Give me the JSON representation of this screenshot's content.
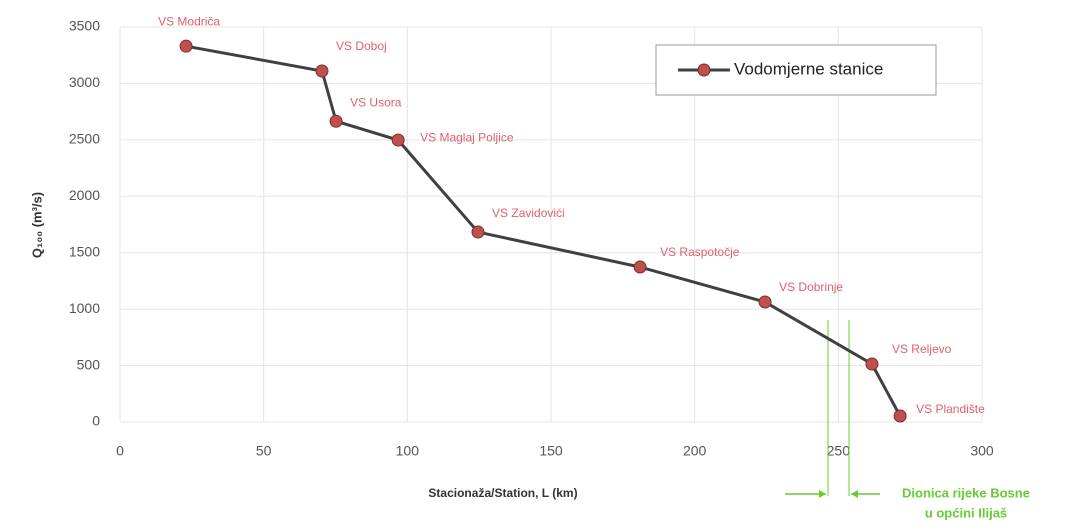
{
  "chart_data": {
    "type": "line",
    "y_label": "Q₁₀₀ (m³/s)",
    "x_label": "Stacionaža/Station, L (km)",
    "series": [
      {
        "name": "Vodomjerne stanice",
        "color": "#404040",
        "marker_color": "#c0504d",
        "x": [
          23,
          70.3,
          75.2,
          96.8,
          124.6,
          181,
          224.5,
          261.7,
          271.5
        ],
        "values": [
          3330,
          3110,
          2665,
          2498,
          1683,
          1373,
          1063,
          514,
          53
        ],
        "point_labels": [
          "VS Modriča",
          "VS Doboj",
          "VS Usora",
          "VS Maglaj Poljice",
          "VS Zavidovići",
          "VS Raspotočje",
          "VS Dobrinje",
          "VS Reljevo",
          "VS Plandište"
        ],
        "label_color": "#e0606a"
      }
    ],
    "xlim": [
      0,
      300
    ],
    "xticks": [
      0,
      50,
      100,
      150,
      200,
      250,
      300
    ],
    "ylim": [
      0,
      3500
    ],
    "yticks": [
      0,
      500,
      1000,
      1500,
      2000,
      2500,
      3000,
      3500
    ],
    "grid": true,
    "legend": "top-right",
    "annotation": [
      "Dionica rijeke Bosne",
      "u općini Ilijaš"
    ],
    "annotation_color": "#66cc33"
  }
}
